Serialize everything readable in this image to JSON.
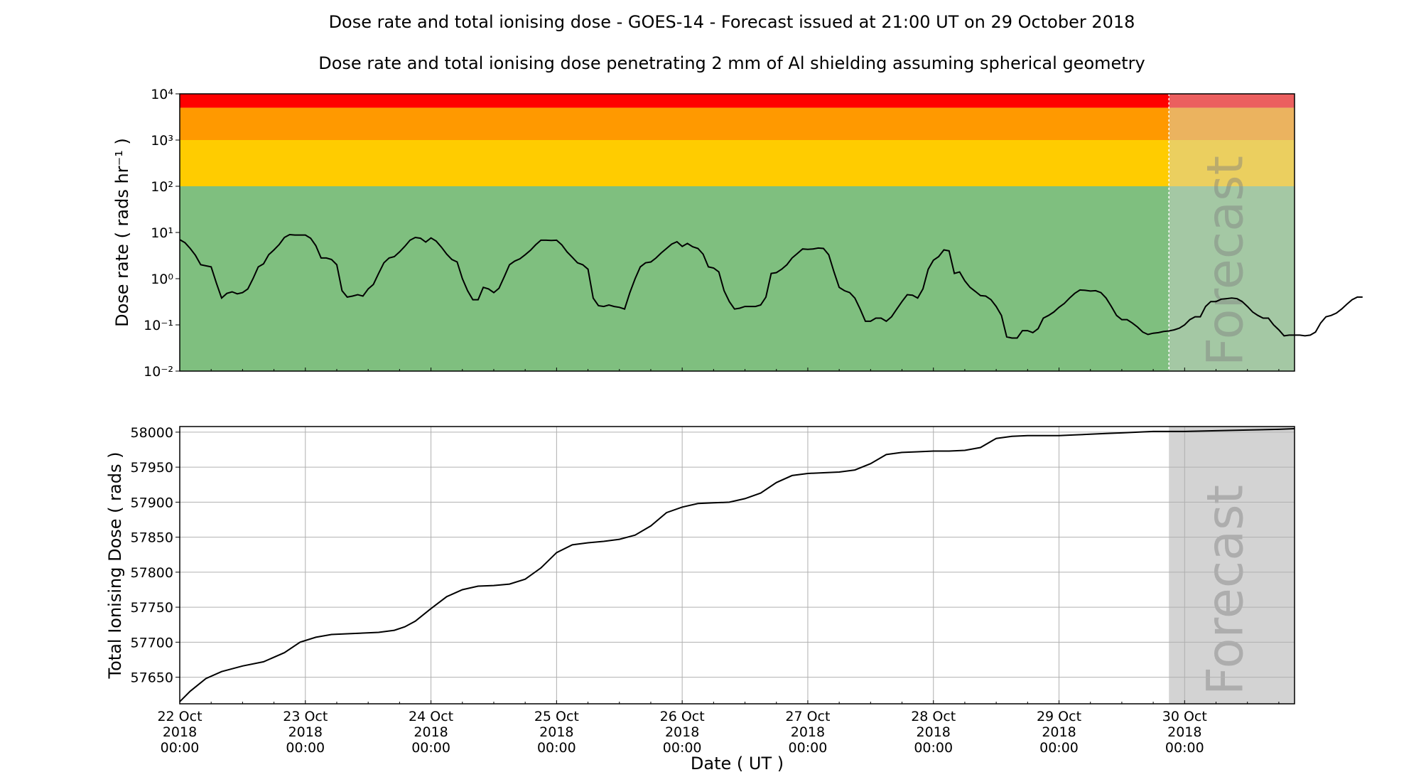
{
  "title": "Dose rate and total ionising dose - GOES-14 - Forecast issued at 21:00 UT on 29 October 2018",
  "subtitle": "Dose rate and total ionising dose penetrating 2 mm of Al shielding assuming spherical geometry",
  "forecast_label": "Forecast",
  "colors": {
    "red": "#ff0000",
    "orange": "#ff9900",
    "yellow": "#ffcc00",
    "green": "#7fbf7f",
    "forecast_shade": "#d3d3d3",
    "line": "#000000"
  },
  "chart_data": [
    {
      "type": "line",
      "ylabel": "Dose rate ( rads hr⁻¹ )",
      "yscale": "log",
      "ylim": [
        0.01,
        10000
      ],
      "ytick_labels": [
        "10⁻²",
        "10⁻¹",
        "10⁰",
        "10¹",
        "10²",
        "10³",
        "10⁴"
      ],
      "bands": [
        {
          "from": 5000,
          "to": 10000,
          "color": "#ff0000"
        },
        {
          "from": 1000,
          "to": 5000,
          "color": "#ff9900"
        },
        {
          "from": 100,
          "to": 1000,
          "color": "#ffcc00"
        },
        {
          "from": 0.01,
          "to": 100,
          "color": "#7fbf7f"
        }
      ],
      "xlim": [
        "2018-10-22 00:00",
        "2018-10-30 21:00"
      ],
      "forecast_start": "2018-10-29 21:00",
      "x_start": "2018-10-22 00:00",
      "x_step_hours": 1,
      "values": [
        7.0,
        6.0,
        4.5,
        3.2,
        2.0,
        1.9,
        1.8,
        0.8,
        0.38,
        0.48,
        0.52,
        0.47,
        0.5,
        0.6,
        1.0,
        1.8,
        2.1,
        3.3,
        4.2,
        5.5,
        7.8,
        9.0,
        8.8,
        8.8,
        8.8,
        7.5,
        5.2,
        2.8,
        2.8,
        2.6,
        2.0,
        0.55,
        0.4,
        0.42,
        0.45,
        0.42,
        0.6,
        0.75,
        1.3,
        2.2,
        2.8,
        3.0,
        3.8,
        5.0,
        6.8,
        7.8,
        7.5,
        6.2,
        7.6,
        6.5,
        4.8,
        3.4,
        2.6,
        2.3,
        1.0,
        0.55,
        0.35,
        0.35,
        0.65,
        0.6,
        0.5,
        0.62,
        1.1,
        2.0,
        2.4,
        2.7,
        3.3,
        4.1,
        5.4,
        6.8,
        6.8,
        6.7,
        6.8,
        5.4,
        3.8,
        2.9,
        2.2,
        2.0,
        1.6,
        0.38,
        0.26,
        0.25,
        0.27,
        0.25,
        0.24,
        0.22,
        0.5,
        1.0,
        1.8,
        2.2,
        2.3,
        2.8,
        3.6,
        4.5,
        5.6,
        6.3,
        5.0,
        5.8,
        4.9,
        4.5,
        3.4,
        1.8,
        1.7,
        1.4,
        0.55,
        0.32,
        0.22,
        0.23,
        0.25,
        0.25,
        0.25,
        0.27,
        0.4,
        1.3,
        1.35,
        1.6,
        2.0,
        2.8,
        3.5,
        4.4,
        4.3,
        4.4,
        4.6,
        4.5,
        3.3,
        1.4,
        0.65,
        0.55,
        0.5,
        0.38,
        0.22,
        0.12,
        0.12,
        0.14,
        0.14,
        0.12,
        0.15,
        0.22,
        0.32,
        0.45,
        0.44,
        0.38,
        0.6,
        1.6,
        2.5,
        3.0,
        4.2,
        4.0,
        1.3,
        1.4,
        0.9,
        0.65,
        0.53,
        0.43,
        0.42,
        0.35,
        0.25,
        0.16,
        0.055,
        0.052,
        0.052,
        0.075,
        0.075,
        0.068,
        0.083,
        0.14,
        0.16,
        0.19,
        0.24,
        0.29,
        0.38,
        0.48,
        0.57,
        0.56,
        0.54,
        0.55,
        0.5,
        0.38,
        0.25,
        0.16,
        0.13,
        0.13,
        0.11,
        0.09,
        0.07,
        0.062,
        0.066,
        0.068,
        0.072,
        0.074,
        0.078,
        0.085,
        0.1,
        0.13,
        0.15,
        0.15,
        0.25,
        0.32,
        0.32,
        0.36,
        0.37,
        0.38,
        0.37,
        0.32,
        0.25,
        0.19,
        0.16,
        0.14,
        0.14,
        0.1,
        0.078,
        0.058,
        0.06,
        0.06,
        0.06,
        0.058,
        0.06,
        0.07,
        0.11,
        0.15,
        0.16,
        0.18,
        0.22,
        0.28,
        0.35,
        0.4,
        0.4
      ]
    },
    {
      "type": "line",
      "ylabel": "Total Ionising Dose ( rads )",
      "ylim": [
        57612,
        58008
      ],
      "yticks": [
        57650,
        57700,
        57750,
        57800,
        57850,
        57900,
        57950,
        58000
      ],
      "grid": true,
      "xlabel": "Date ( UT )",
      "xtick_labels": [
        {
          "day": "22 Oct",
          "year": "2018",
          "time": "00:00"
        },
        {
          "day": "23 Oct",
          "year": "2018",
          "time": "00:00"
        },
        {
          "day": "24 Oct",
          "year": "2018",
          "time": "00:00"
        },
        {
          "day": "25 Oct",
          "year": "2018",
          "time": "00:00"
        },
        {
          "day": "26 Oct",
          "year": "2018",
          "time": "00:00"
        },
        {
          "day": "27 Oct",
          "year": "2018",
          "time": "00:00"
        },
        {
          "day": "28 Oct",
          "year": "2018",
          "time": "00:00"
        },
        {
          "day": "29 Oct",
          "year": "2018",
          "time": "00:00"
        },
        {
          "day": "30 Oct",
          "year": "2018",
          "time": "00:00"
        }
      ],
      "xlim": [
        "2018-10-22 00:00",
        "2018-10-30 21:00"
      ],
      "forecast_start": "2018-10-29 21:00",
      "x": [
        "2018-10-22 00:00",
        "2018-10-22 02:00",
        "2018-10-22 05:00",
        "2018-10-22 08:00",
        "2018-10-22 12:00",
        "2018-10-22 16:00",
        "2018-10-22 20:00",
        "2018-10-22 23:00",
        "2018-10-23 02:00",
        "2018-10-23 05:00",
        "2018-10-23 08:00",
        "2018-10-23 11:00",
        "2018-10-23 14:00",
        "2018-10-23 17:00",
        "2018-10-23 19:00",
        "2018-10-23 21:00",
        "2018-10-24 00:00",
        "2018-10-24 03:00",
        "2018-10-24 06:00",
        "2018-10-24 09:00",
        "2018-10-24 12:00",
        "2018-10-24 15:00",
        "2018-10-24 18:00",
        "2018-10-24 21:00",
        "2018-10-25 00:00",
        "2018-10-25 03:00",
        "2018-10-25 06:00",
        "2018-10-25 09:00",
        "2018-10-25 12:00",
        "2018-10-25 15:00",
        "2018-10-25 18:00",
        "2018-10-25 21:00",
        "2018-10-26 00:00",
        "2018-10-26 03:00",
        "2018-10-26 06:00",
        "2018-10-26 09:00",
        "2018-10-26 12:00",
        "2018-10-26 15:00",
        "2018-10-26 18:00",
        "2018-10-26 21:00",
        "2018-10-27 00:00",
        "2018-10-27 03:00",
        "2018-10-27 06:00",
        "2018-10-27 09:00",
        "2018-10-27 12:00",
        "2018-10-27 15:00",
        "2018-10-27 18:00",
        "2018-10-27 21:00",
        "2018-10-28 00:00",
        "2018-10-28 03:00",
        "2018-10-28 06:00",
        "2018-10-28 09:00",
        "2018-10-28 12:00",
        "2018-10-28 15:00",
        "2018-10-28 18:00",
        "2018-10-28 21:00",
        "2018-10-29 00:00",
        "2018-10-29 03:00",
        "2018-10-29 06:00",
        "2018-10-29 09:00",
        "2018-10-29 12:00",
        "2018-10-29 15:00",
        "2018-10-29 18:00",
        "2018-10-29 21:00",
        "2018-10-30 00:00",
        "2018-10-30 06:00",
        "2018-10-30 12:00",
        "2018-10-30 18:00",
        "2018-10-30 21:00"
      ],
      "values": [
        57615,
        57630,
        57648,
        57658,
        57666,
        57672,
        57685,
        57700,
        57707,
        57711,
        57712,
        57713,
        57714,
        57717,
        57722,
        57730,
        57748,
        57765,
        57775,
        57780,
        57781,
        57783,
        57790,
        57806,
        57828,
        57839,
        57842,
        57844,
        57847,
        57853,
        57866,
        57885,
        57893,
        57898,
        57899,
        57900,
        57905,
        57913,
        57928,
        57938,
        57941,
        57942,
        57943,
        57946,
        57955,
        57968,
        57971,
        57972,
        57973,
        57973,
        57974,
        57978,
        57991,
        57994,
        57995,
        57995,
        57995,
        57996,
        57997,
        57998,
        57999,
        58000,
        58001,
        58001,
        58001,
        58002,
        58003,
        58004,
        58005
      ]
    }
  ]
}
